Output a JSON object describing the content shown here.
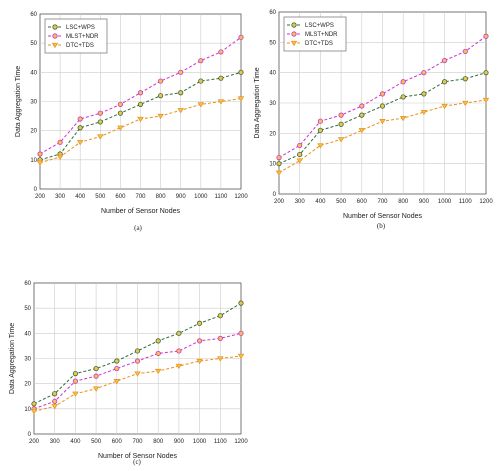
{
  "chart_data": [
    {
      "type": "line",
      "caption": "(a)",
      "xlabel": "Number of Sensor Nodes",
      "ylabel": "Data Aggregation Time",
      "x": [
        200,
        300,
        400,
        500,
        600,
        700,
        800,
        900,
        1000,
        1100,
        1200
      ],
      "xlim": [
        200,
        1200
      ],
      "ylim": [
        0,
        60
      ],
      "yticks": [
        0,
        10,
        20,
        30,
        40,
        50,
        60
      ],
      "grid": true,
      "legend": "top-left",
      "series": [
        {
          "name": "LSC+WPS",
          "color": "#2e6b3a",
          "marker": "circle",
          "values": [
            10,
            12,
            21,
            23,
            26,
            29,
            32,
            33,
            37,
            38,
            40
          ]
        },
        {
          "name": "MLST+NDR",
          "color": "#cc33cc",
          "marker": "circle",
          "values": [
            12,
            16,
            24,
            26,
            29,
            33,
            37,
            40,
            44,
            47,
            52
          ]
        },
        {
          "name": "DTC+TDS",
          "color": "#e8901a",
          "marker": "triangle-down",
          "values": [
            9,
            11,
            16,
            18,
            21,
            24,
            25,
            27,
            29,
            30,
            31
          ]
        }
      ]
    },
    {
      "type": "line",
      "caption": "(b)",
      "xlabel": "Number of Sensor Nodes",
      "ylabel": "Data Aggregation Time",
      "x": [
        200,
        300,
        400,
        500,
        600,
        700,
        800,
        900,
        1000,
        1100,
        1200
      ],
      "xlim": [
        200,
        1200
      ],
      "ylim": [
        0,
        60
      ],
      "yticks": [
        0,
        10,
        20,
        30,
        40,
        50,
        60
      ],
      "grid": true,
      "legend": "top-left",
      "series": [
        {
          "name": "LSC+WPS",
          "color": "#2e6b3a",
          "marker": "circle",
          "values": [
            10,
            13,
            21,
            23,
            26,
            29,
            32,
            33,
            37,
            38,
            40
          ]
        },
        {
          "name": "MLST+NDR",
          "color": "#cc33cc",
          "marker": "circle",
          "values": [
            12,
            16,
            24,
            26,
            29,
            33,
            37,
            40,
            44,
            47,
            52
          ]
        },
        {
          "name": "DTC+TDS",
          "color": "#e8901a",
          "marker": "triangle-down",
          "values": [
            7,
            11,
            16,
            18,
            21,
            24,
            25,
            27,
            29,
            30,
            31
          ]
        }
      ]
    },
    {
      "type": "line",
      "caption": "(c)",
      "xlabel": "Number of Sensor Nodes",
      "ylabel": "Data Aggregation Time",
      "x": [
        200,
        300,
        400,
        500,
        600,
        700,
        800,
        900,
        1000,
        1100,
        1200
      ],
      "xlim": [
        200,
        1200
      ],
      "ylim": [
        0,
        60
      ],
      "yticks": [
        0,
        10,
        20,
        30,
        40,
        50,
        60
      ],
      "grid": true,
      "legend": "",
      "series": [
        {
          "name": "",
          "color": "#2e6b3a",
          "marker": "circle",
          "values": [
            12,
            16,
            24,
            26,
            29,
            33,
            37,
            40,
            44,
            47,
            52
          ]
        },
        {
          "name": "",
          "color": "#cc33cc",
          "marker": "circle",
          "values": [
            10,
            13,
            21,
            23,
            26,
            29,
            32,
            33,
            37,
            38,
            40
          ]
        },
        {
          "name": "",
          "color": "#e8901a",
          "marker": "triangle-down",
          "values": [
            9,
            11,
            16,
            18,
            21,
            24,
            25,
            27,
            29,
            30,
            31
          ]
        }
      ]
    }
  ]
}
